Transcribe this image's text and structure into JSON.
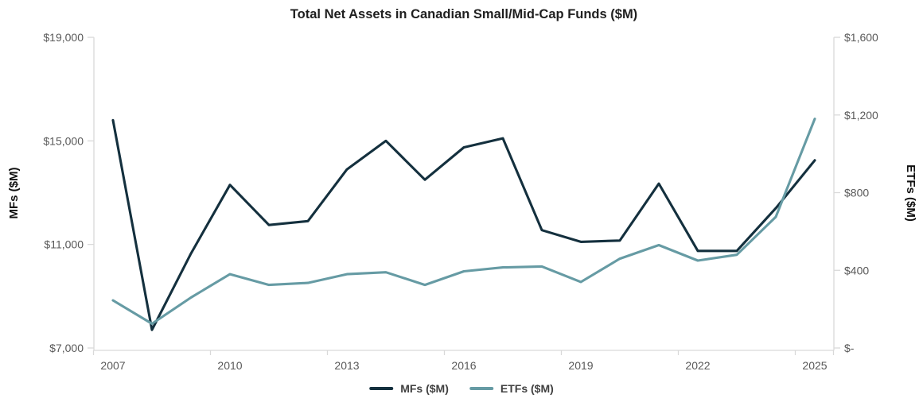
{
  "title": "Total Net Assets in Canadian Small/Mid-Cap Funds ($M)",
  "colors": {
    "mf_line": "#14303e",
    "etf_line": "#669ba4",
    "tick_text": "#595959",
    "axis_line": "#d9d9d9",
    "title_text": "#1f1f1f",
    "legend_text": "#404040"
  },
  "chart_data": {
    "type": "line",
    "title": "Total Net Assets in Canadian Small/Mid-Cap Funds ($M)",
    "grid": "off",
    "x": [
      2007,
      2008,
      2009,
      2010,
      2011,
      2012,
      2013,
      2014,
      2015,
      2016,
      2017,
      2018,
      2019,
      2020,
      2021,
      2022,
      2023,
      2024,
      2025
    ],
    "x_tick_labels": [
      "2007",
      "2010",
      "2013",
      "2016",
      "2019",
      "2022",
      "2025"
    ],
    "series": [
      {
        "name": "MFs ($M)",
        "axis": "left",
        "color": "#14303e",
        "values": [
          15800,
          7700,
          10650,
          13300,
          11750,
          11900,
          13900,
          15000,
          13500,
          14750,
          15100,
          11550,
          11100,
          11150,
          13350,
          10750,
          10750,
          12400,
          14250
        ]
      },
      {
        "name": "ETFs ($M)",
        "axis": "right",
        "color": "#669ba4",
        "values": [
          245,
          125,
          260,
          380,
          325,
          335,
          380,
          390,
          325,
          395,
          415,
          420,
          340,
          460,
          530,
          450,
          480,
          675,
          1180
        ]
      }
    ],
    "left_axis": {
      "label": "MFs ($M)",
      "min": 7000,
      "max": 19000,
      "tick_values": [
        19000,
        15000,
        11000,
        7000
      ],
      "tick_labels": [
        "$19,000",
        "$15,000",
        "$11,000",
        "$7,000"
      ]
    },
    "right_axis": {
      "label": "ETFs ($M)",
      "min": 0,
      "max": 1600,
      "tick_values": [
        1600,
        1200,
        800,
        400,
        0
      ],
      "tick_labels": [
        "$1,600",
        "$1,200",
        "$800",
        "$400",
        "$-"
      ]
    },
    "legend": {
      "position": "bottom-center",
      "entries": [
        "MFs ($M)",
        "ETFs ($M)"
      ]
    }
  }
}
